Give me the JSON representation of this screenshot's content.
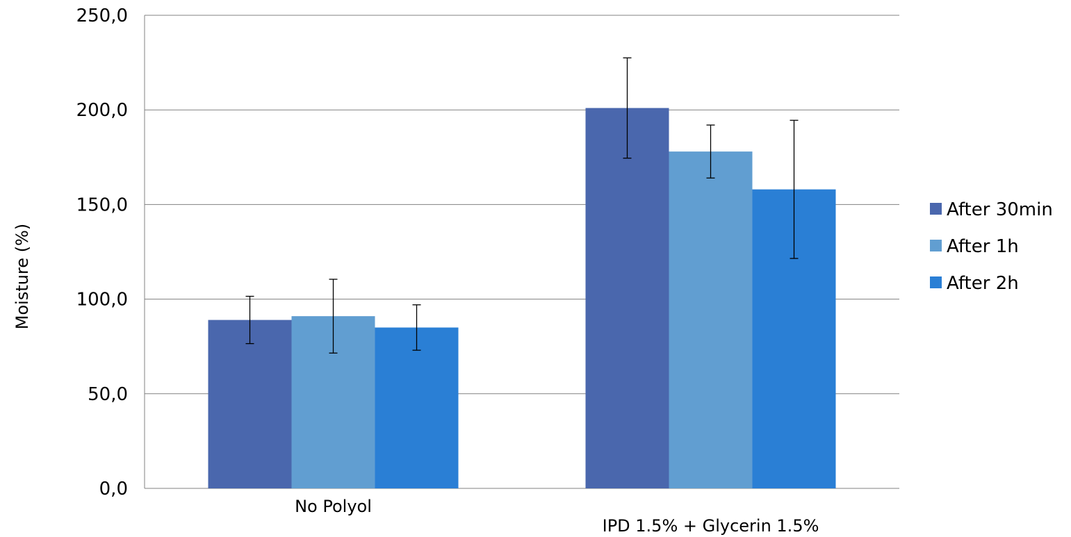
{
  "chart_data": {
    "type": "bar",
    "title": "",
    "xlabel": "",
    "ylabel": "Moisture (%)",
    "ylim": [
      0,
      250
    ],
    "yticks": [
      0,
      50,
      100,
      150,
      200,
      250
    ],
    "ytick_labels": [
      "0,0",
      "50,0",
      "100,0",
      "150,0",
      "200,0",
      "250,0"
    ],
    "categories": [
      "No Polyol",
      "IPD 1.5% + Glycerin 1.5%"
    ],
    "series": [
      {
        "name": "After 30min",
        "color": "#4A67AD",
        "values": [
          89,
          201
        ],
        "error": [
          12.5,
          26.5
        ]
      },
      {
        "name": "After 1h",
        "color": "#619ED1",
        "values": [
          91,
          178
        ],
        "error": [
          19.5,
          14
        ]
      },
      {
        "name": "After 2h",
        "color": "#2A7FD5",
        "values": [
          85,
          158
        ],
        "error": [
          12,
          36.5
        ]
      }
    ],
    "grid": true,
    "legend_position": "right"
  }
}
